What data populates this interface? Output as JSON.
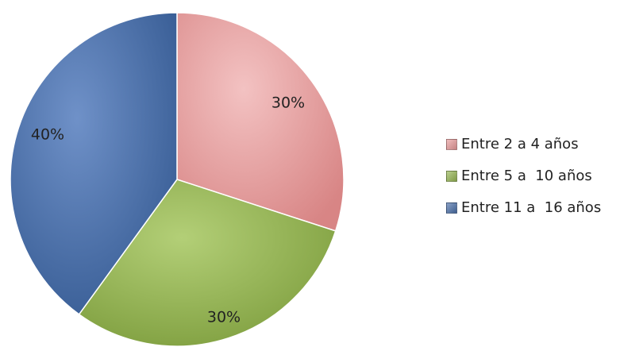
{
  "chart_data": {
    "type": "pie",
    "categories": [
      "Entre 2 a 4 años",
      "Entre 5 a  10 años",
      "Entre 11 a  16 años"
    ],
    "values": [
      30,
      30,
      40
    ],
    "value_labels": [
      "30%",
      "30%",
      "40%"
    ],
    "colors": [
      "#e89a9a",
      "#95b552",
      "#4a6fa8"
    ],
    "legend_position": "right",
    "title": ""
  }
}
